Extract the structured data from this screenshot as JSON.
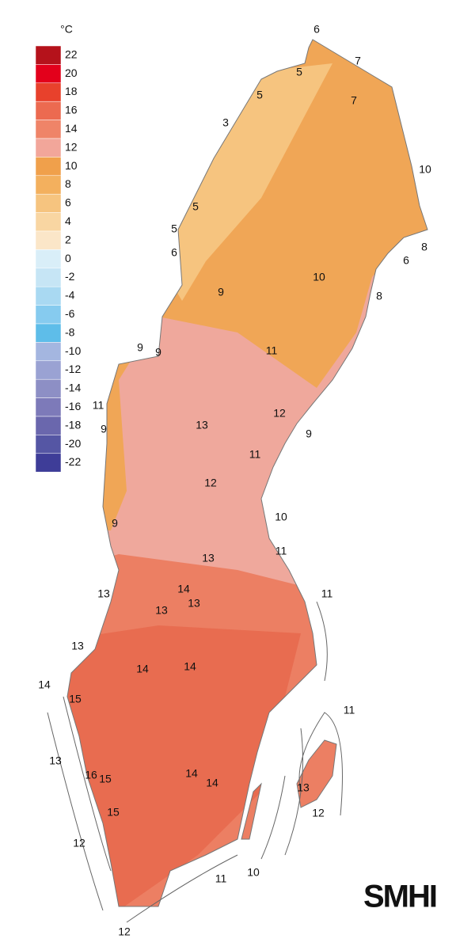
{
  "legend": {
    "unit": "°C",
    "ticks": [
      22,
      20,
      18,
      16,
      14,
      12,
      10,
      8,
      6,
      4,
      2,
      0,
      -2,
      -4,
      -6,
      -8,
      -10,
      -12,
      -14,
      -16,
      -18,
      -20,
      -22
    ],
    "colors": [
      "#b5121b",
      "#e3001b",
      "#e8412c",
      "#ec6a50",
      "#ef8468",
      "#f2a69a",
      "#f0a04b",
      "#f3b05e",
      "#f6c47f",
      "#f9d6a2",
      "#fbe6c8",
      "#d9eef8",
      "#c6e5f5",
      "#a9d9f2",
      "#86cbef",
      "#5ebde9",
      "#a4b6e0",
      "#9aa2d3",
      "#8d8fc5",
      "#7d7ab9",
      "#6a67ad",
      "#5556a4",
      "#3e3d98"
    ]
  },
  "contour_labels": [
    6,
    7,
    5,
    7,
    5,
    3,
    10,
    5,
    5,
    8,
    6,
    6,
    10,
    9,
    8,
    11,
    9,
    9,
    12,
    11,
    13,
    9,
    9,
    11,
    12,
    10,
    9,
    11,
    13,
    13,
    14,
    11,
    13,
    13,
    13,
    14,
    14,
    14,
    15,
    11,
    13,
    14,
    16,
    15,
    14,
    13,
    15,
    12,
    12,
    10,
    11,
    12
  ],
  "logo": "SMHI"
}
